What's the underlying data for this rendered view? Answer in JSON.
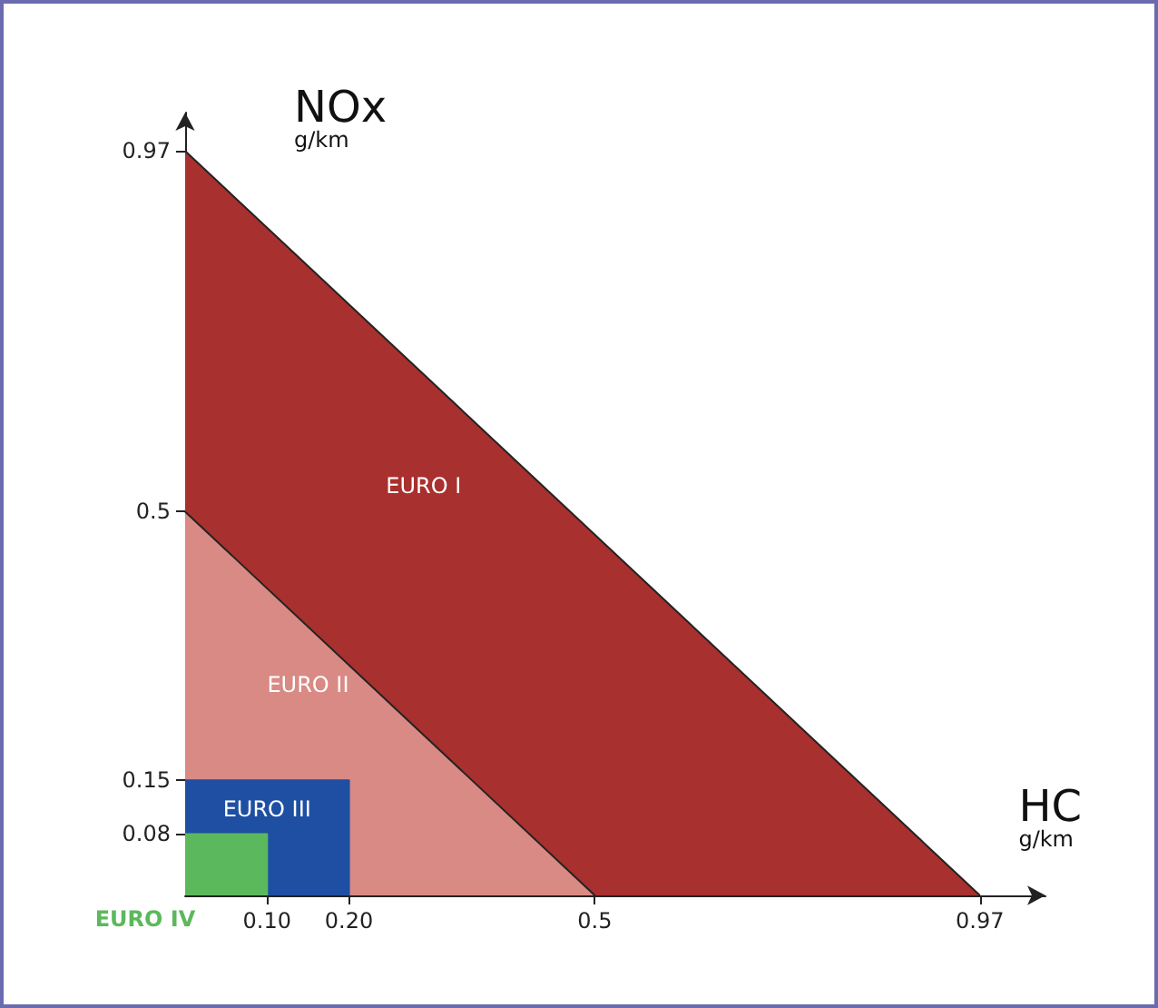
{
  "chart_data": {
    "type": "area",
    "xlabel": "HC\ng/km",
    "ylabel": "NOx\ng/km",
    "xlim": [
      0,
      1.05
    ],
    "ylim": [
      0,
      1.02
    ],
    "xticks": [
      {
        "value": 0.1,
        "label": "0.10"
      },
      {
        "value": 0.2,
        "label": "0.20"
      },
      0.5,
      0.97
    ],
    "yticks": [
      0.08,
      0.15,
      0.5,
      0.97
    ],
    "grid": false,
    "legend": false,
    "marker": "none",
    "series": [
      {
        "name": "EURO I",
        "color": "#a8302e",
        "x": [
          0,
          0.97
        ],
        "values": [
          0.97,
          0
        ]
      },
      {
        "name": "EURO II",
        "color": "#d98a84",
        "x": [
          0,
          0.5
        ],
        "values": [
          0.5,
          0
        ]
      },
      {
        "name": "EURO III",
        "color": "#1e4fa3",
        "x": [
          0,
          0.2,
          0.2
        ],
        "values": [
          0.15,
          0.15,
          0
        ]
      },
      {
        "name": "EURO IV",
        "color": "#5cb85c",
        "x": [
          0,
          0.1,
          0.1
        ],
        "values": [
          0.08,
          0.08,
          0
        ]
      }
    ]
  }
}
